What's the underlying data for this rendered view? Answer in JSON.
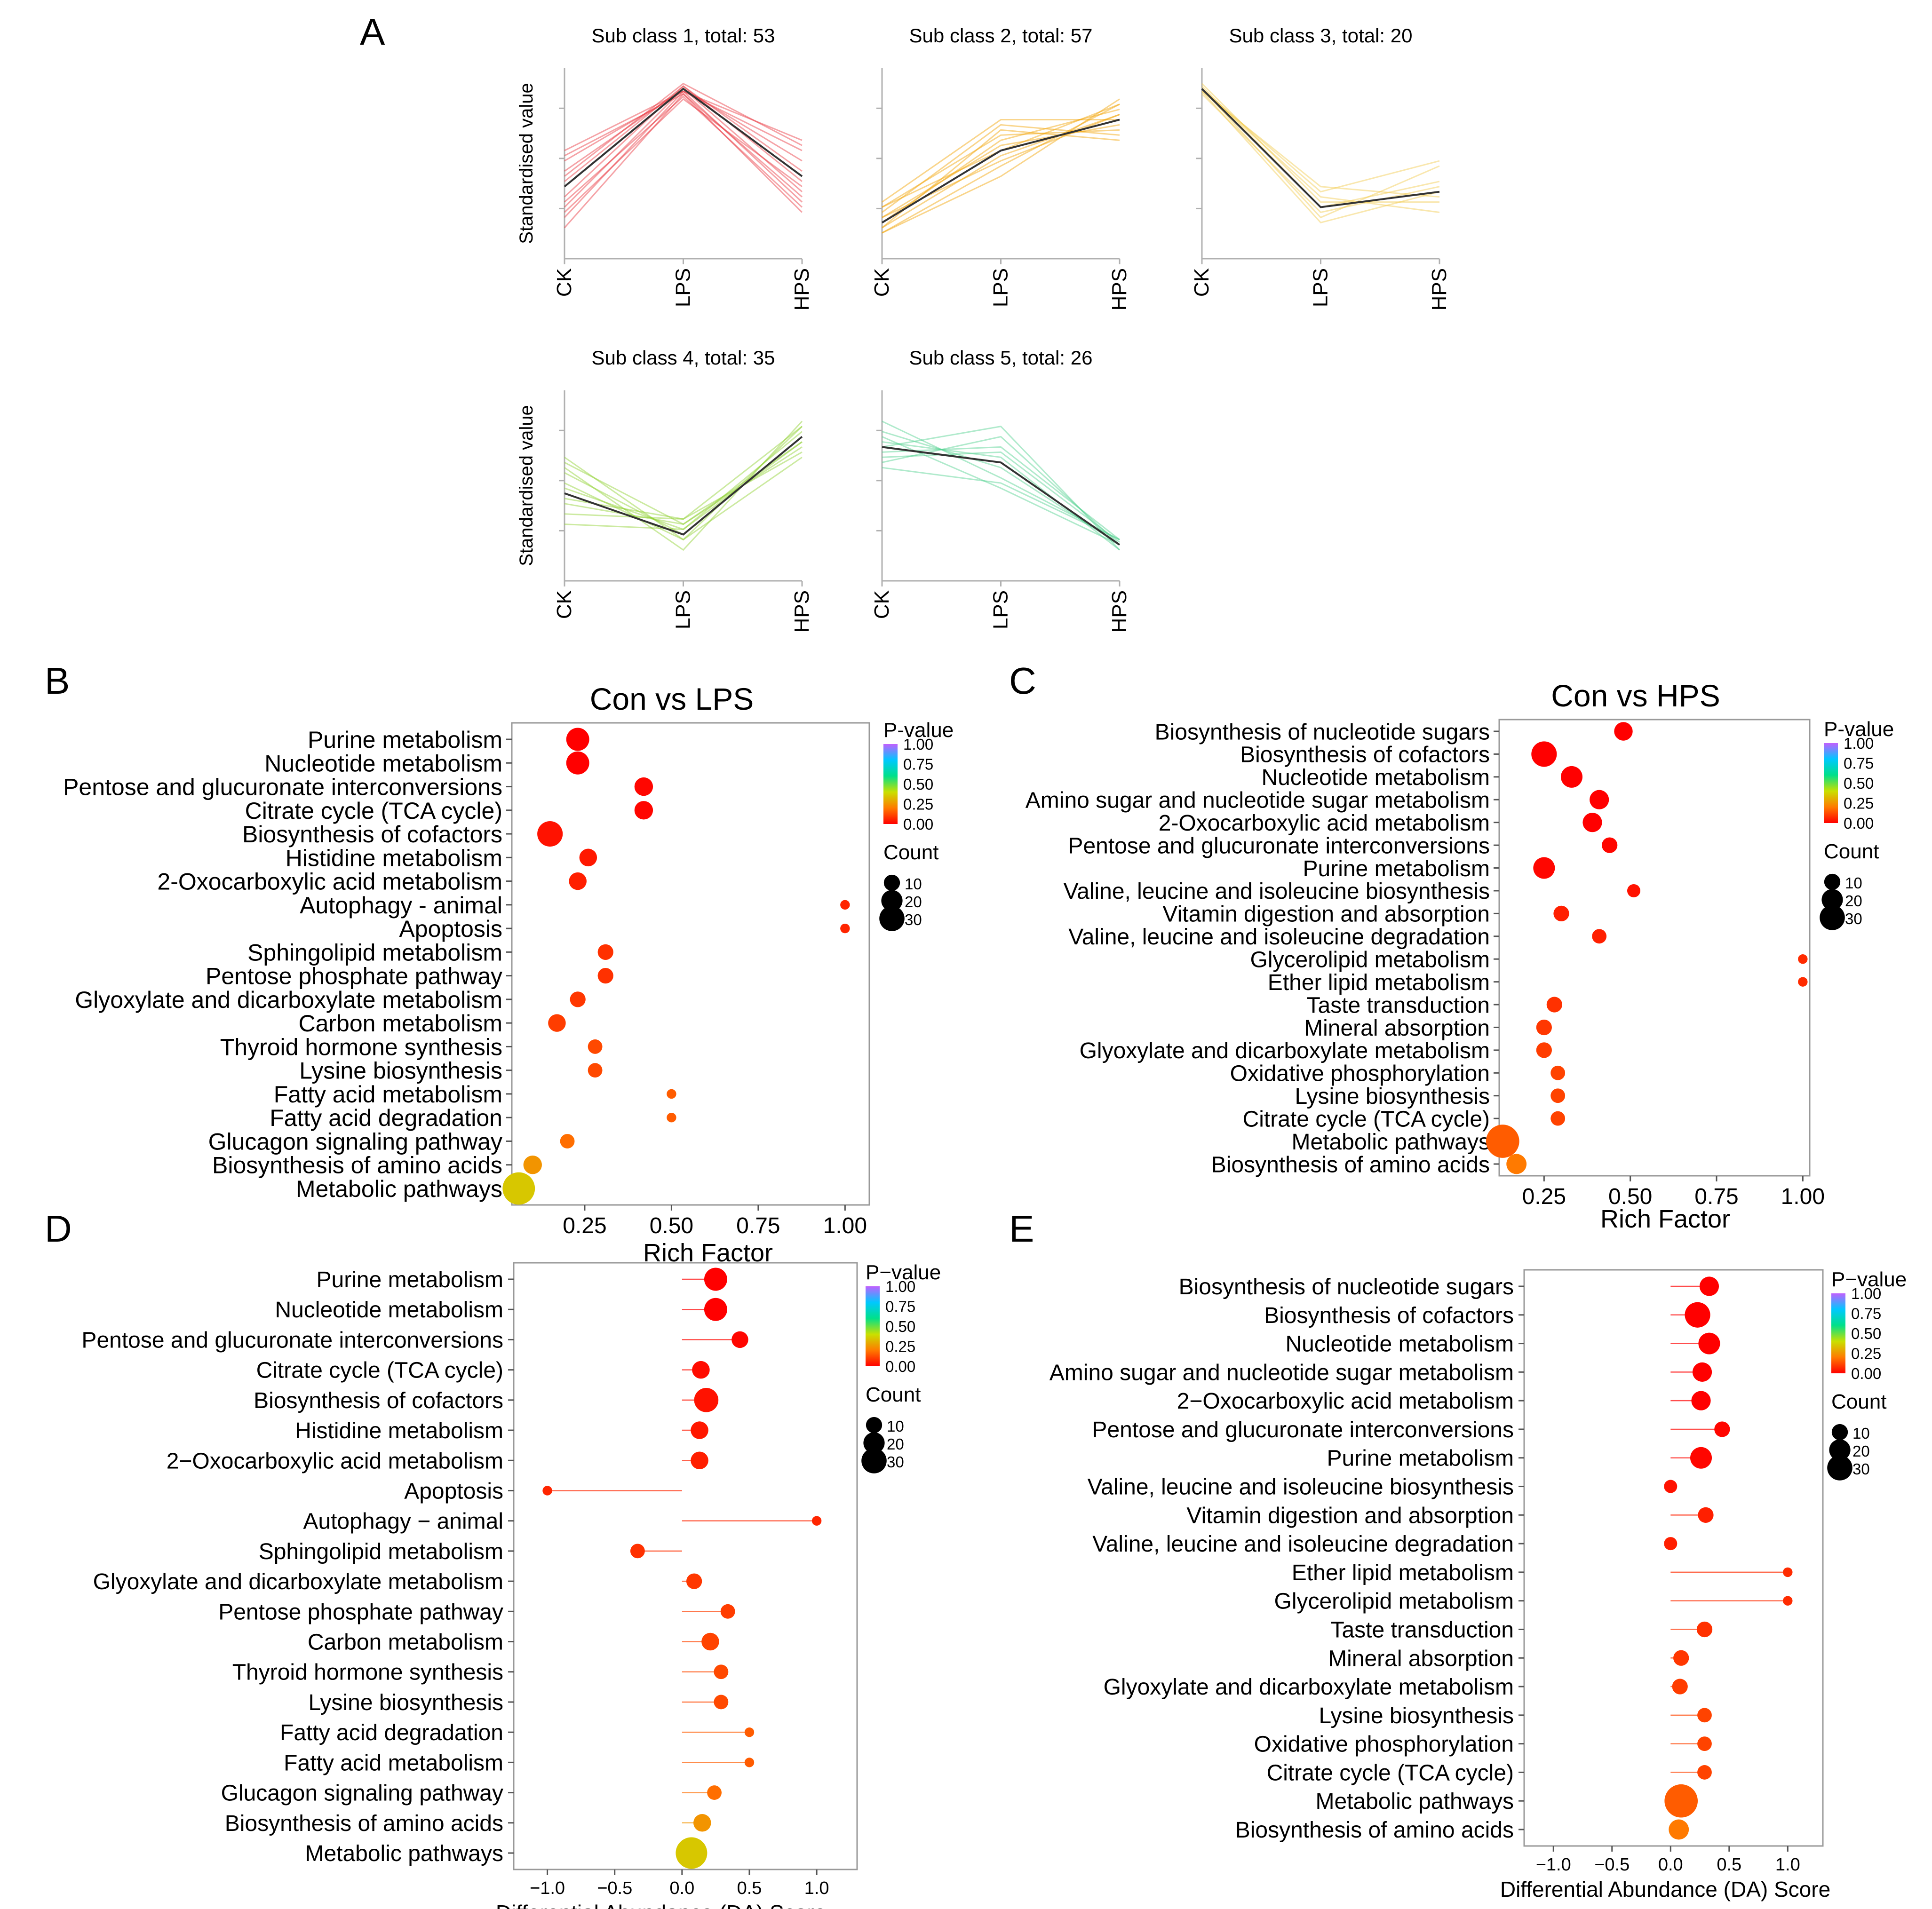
{
  "figure": {
    "panel_letters": [
      "A",
      "B",
      "C",
      "D",
      "E"
    ]
  },
  "colors": {
    "pvalue_gradient": [
      "#ff0000",
      "#ff7a00",
      "#c9e000",
      "#00e08a",
      "#00c8ff",
      "#c060ff"
    ],
    "frame": "#999999",
    "background": "#ffffff"
  },
  "chart_data": [
    {
      "type": "line",
      "panel": "A",
      "title": "Sub class 1, total: 53",
      "ylabel": "Standardised value",
      "categories": [
        "CK",
        "LPS",
        "HPS"
      ],
      "color": "#e8323c",
      "mean": [
        -0.4,
        1.5,
        -0.2
      ],
      "profiles": [
        [
          -1.2,
          1.4,
          -0.9
        ],
        [
          -1.0,
          1.45,
          -0.7
        ],
        [
          -0.8,
          1.5,
          -0.5
        ],
        [
          -0.6,
          1.55,
          -0.3
        ],
        [
          -0.3,
          1.55,
          -0.1
        ],
        [
          -0.1,
          1.5,
          0.1
        ],
        [
          0.1,
          1.45,
          0.3
        ],
        [
          0.3,
          1.45,
          0.5
        ],
        [
          -0.7,
          1.35,
          -0.8
        ],
        [
          -0.2,
          1.6,
          0.4
        ],
        [
          -0.9,
          1.3,
          -0.4
        ],
        [
          0.2,
          1.4,
          -0.6
        ]
      ]
    },
    {
      "type": "line",
      "panel": "A",
      "title": "Sub class 2, total: 57",
      "ylabel": "",
      "categories": [
        "CK",
        "LPS",
        "HPS"
      ],
      "color": "#f2a100",
      "mean": [
        -1.1,
        0.3,
        0.9
      ],
      "profiles": [
        [
          -1.3,
          0.0,
          1.2
        ],
        [
          -1.2,
          0.2,
          1.0
        ],
        [
          -1.0,
          0.4,
          0.8
        ],
        [
          -0.8,
          0.6,
          0.7
        ],
        [
          -0.9,
          0.8,
          0.6
        ],
        [
          -1.1,
          0.5,
          1.1
        ],
        [
          -1.3,
          -0.2,
          1.3
        ],
        [
          -0.7,
          0.9,
          0.9
        ],
        [
          -1.0,
          0.1,
          1.0
        ],
        [
          -1.2,
          0.7,
          0.5
        ],
        [
          -0.8,
          0.3,
          1.2
        ]
      ]
    },
    {
      "type": "line",
      "panel": "A",
      "title": "Sub class 3, total: 20",
      "ylabel": "",
      "categories": [
        "CK",
        "LPS",
        "HPS"
      ],
      "color": "#f2c94c",
      "mean": [
        1.5,
        -0.8,
        -0.5
      ],
      "profiles": [
        [
          1.5,
          -0.6,
          -0.9
        ],
        [
          1.45,
          -0.4,
          -0.6
        ],
        [
          1.55,
          -0.8,
          -0.3
        ],
        [
          1.5,
          -1.0,
          0.0
        ],
        [
          1.4,
          -0.9,
          -0.4
        ],
        [
          1.6,
          -0.7,
          -0.7
        ],
        [
          1.5,
          -0.5,
          0.1
        ],
        [
          1.45,
          -1.1,
          -0.5
        ]
      ]
    },
    {
      "type": "line",
      "panel": "A",
      "title": "Sub class 4, total: 35",
      "ylabel": "Standardised value",
      "categories": [
        "CK",
        "LPS",
        "HPS"
      ],
      "color": "#8fd12f",
      "mean": [
        -0.1,
        -0.9,
        1.0
      ],
      "profiles": [
        [
          0.6,
          -1.0,
          1.2
        ],
        [
          0.3,
          -0.9,
          1.0
        ],
        [
          0.0,
          -0.8,
          0.9
        ],
        [
          -0.3,
          -0.7,
          0.8
        ],
        [
          -0.5,
          -0.6,
          0.7
        ],
        [
          -0.7,
          -0.8,
          1.1
        ],
        [
          0.4,
          -1.2,
          1.3
        ],
        [
          0.1,
          -1.0,
          0.6
        ],
        [
          -0.2,
          -0.6,
          1.2
        ],
        [
          0.5,
          -0.7,
          0.9
        ]
      ]
    },
    {
      "type": "line",
      "panel": "A",
      "title": "Sub class 5, total: 26",
      "ylabel": "",
      "categories": [
        "CK",
        "LPS",
        "HPS"
      ],
      "color": "#4fd18f",
      "mean": [
        0.8,
        0.5,
        -1.1
      ],
      "profiles": [
        [
          1.3,
          0.2,
          -1.0
        ],
        [
          1.1,
          0.4,
          -1.1
        ],
        [
          0.9,
          0.6,
          -1.2
        ],
        [
          0.7,
          0.8,
          -1.0
        ],
        [
          0.5,
          1.0,
          -1.1
        ],
        [
          0.8,
          1.2,
          -1.2
        ],
        [
          0.4,
          0.1,
          -1.0
        ],
        [
          1.0,
          0.0,
          -1.1
        ],
        [
          0.6,
          0.7,
          -1.05
        ]
      ]
    },
    {
      "type": "scatter",
      "panel": "B",
      "title": "Con vs LPS",
      "xlabel": "Rich Factor",
      "xlim": [
        0.04,
        1.07
      ],
      "xticks": [
        "0.25",
        "0.50",
        "0.75",
        "1.00"
      ],
      "legend_color_title": "P-value",
      "legend_color_ticks": [
        "1.00",
        "0.75",
        "0.50",
        "0.25",
        "0.00"
      ],
      "legend_size_title": "Count",
      "legend_size_ticks": [
        "10",
        "20",
        "30"
      ],
      "points": [
        {
          "label": "Purine metabolism",
          "x": 0.23,
          "count": 14,
          "p": 0.0
        },
        {
          "label": "Nucleotide metabolism",
          "x": 0.23,
          "count": 14,
          "p": 0.0
        },
        {
          "label": "Pentose and glucuronate interconversions",
          "x": 0.42,
          "count": 8,
          "p": 0.01
        },
        {
          "label": "Citrate cycle (TCA cycle)",
          "x": 0.42,
          "count": 8,
          "p": 0.01
        },
        {
          "label": "Biosynthesis of cofactors",
          "x": 0.15,
          "count": 18,
          "p": 0.03
        },
        {
          "label": "Histidine metabolism",
          "x": 0.26,
          "count": 7,
          "p": 0.04
        },
        {
          "label": "2-Oxocarboxylic acid metabolism",
          "x": 0.23,
          "count": 7,
          "p": 0.05
        },
        {
          "label": "Autophagy - animal",
          "x": 1.0,
          "count": 1,
          "p": 0.06
        },
        {
          "label": "Apoptosis",
          "x": 1.0,
          "count": 1,
          "p": 0.06
        },
        {
          "label": "Sphingolipid metabolism",
          "x": 0.31,
          "count": 5,
          "p": 0.08
        },
        {
          "label": "Pentose phosphate pathway",
          "x": 0.31,
          "count": 5,
          "p": 0.08
        },
        {
          "label": "Glyoxylate and dicarboxylate metabolism",
          "x": 0.23,
          "count": 5,
          "p": 0.09
        },
        {
          "label": "Carbon metabolism",
          "x": 0.17,
          "count": 7,
          "p": 0.1
        },
        {
          "label": "Thyroid hormone synthesis",
          "x": 0.28,
          "count": 4,
          "p": 0.12
        },
        {
          "label": "Lysine biosynthesis",
          "x": 0.28,
          "count": 4,
          "p": 0.12
        },
        {
          "label": "Fatty acid metabolism",
          "x": 0.5,
          "count": 1,
          "p": 0.15
        },
        {
          "label": "Fatty acid degradation",
          "x": 0.5,
          "count": 1,
          "p": 0.15
        },
        {
          "label": "Glucagon signaling pathway",
          "x": 0.2,
          "count": 4,
          "p": 0.18
        },
        {
          "label": "Biosynthesis of amino acids",
          "x": 0.1,
          "count": 8,
          "p": 0.25
        },
        {
          "label": "Metabolic pathways",
          "x": 0.06,
          "count": 32,
          "p": 0.35
        }
      ]
    },
    {
      "type": "scatter",
      "panel": "C",
      "title": "Con vs HPS",
      "xlabel": "Rich Factor",
      "xlim": [
        0.12,
        1.02
      ],
      "xticks": [
        "0.25",
        "0.50",
        "0.75",
        "1.00"
      ],
      "legend_color_title": "P-value",
      "legend_color_ticks": [
        "1.00",
        "0.75",
        "0.50",
        "0.25",
        "0.00"
      ],
      "legend_size_title": "Count",
      "legend_size_ticks": [
        "10",
        "20",
        "30"
      ],
      "points": [
        {
          "label": "Biosynthesis of nucleotide sugars",
          "x": 0.48,
          "count": 8,
          "p": 0.0
        },
        {
          "label": "Biosynthesis of cofactors",
          "x": 0.25,
          "count": 18,
          "p": 0.0
        },
        {
          "label": "Nucleotide metabolism",
          "x": 0.33,
          "count": 12,
          "p": 0.0
        },
        {
          "label": "Amino sugar and nucleotide sugar metabolism",
          "x": 0.41,
          "count": 9,
          "p": 0.0
        },
        {
          "label": "2-Oxocarboxylic acid metabolism",
          "x": 0.39,
          "count": 9,
          "p": 0.0
        },
        {
          "label": "Pentose and glucuronate interconversions",
          "x": 0.44,
          "count": 5,
          "p": 0.01
        },
        {
          "label": "Purine metabolism",
          "x": 0.25,
          "count": 12,
          "p": 0.01
        },
        {
          "label": "Valine, leucine and isoleucine biosynthesis",
          "x": 0.51,
          "count": 3,
          "p": 0.03
        },
        {
          "label": "Vitamin digestion and absorption",
          "x": 0.3,
          "count": 5,
          "p": 0.05
        },
        {
          "label": "Valine, leucine and isoleucine degradation",
          "x": 0.41,
          "count": 4,
          "p": 0.05
        },
        {
          "label": "Glycerolipid metabolism",
          "x": 1.0,
          "count": 1,
          "p": 0.07
        },
        {
          "label": "Ether lipid metabolism",
          "x": 1.0,
          "count": 1,
          "p": 0.07
        },
        {
          "label": "Taste transduction",
          "x": 0.28,
          "count": 5,
          "p": 0.08
        },
        {
          "label": "Mineral absorption",
          "x": 0.25,
          "count": 5,
          "p": 0.09
        },
        {
          "label": "Glyoxylate and dicarboxylate metabolism",
          "x": 0.25,
          "count": 5,
          "p": 0.1
        },
        {
          "label": "Oxidative phosphorylation",
          "x": 0.29,
          "count": 4,
          "p": 0.11
        },
        {
          "label": "Lysine biosynthesis",
          "x": 0.29,
          "count": 4,
          "p": 0.11
        },
        {
          "label": "Citrate cycle (TCA cycle)",
          "x": 0.29,
          "count": 4,
          "p": 0.11
        },
        {
          "label": "Metabolic pathways",
          "x": 0.13,
          "count": 34,
          "p": 0.15
        },
        {
          "label": "Biosynthesis of amino acids",
          "x": 0.17,
          "count": 10,
          "p": 0.2
        }
      ]
    },
    {
      "type": "scatter",
      "panel": "D",
      "title": "",
      "xlabel": "Differential Abundance (DA) Score",
      "xlim": [
        -1.25,
        1.3
      ],
      "xticks": [
        "−1.0",
        "−0.5",
        "0.0",
        "0.5",
        "1.0"
      ],
      "xtick_values": [
        -1.0,
        -0.5,
        0.0,
        0.5,
        1.0
      ],
      "legend_color_title": "P−value",
      "legend_color_ticks": [
        "1.00",
        "0.75",
        "0.50",
        "0.25",
        "0.00"
      ],
      "legend_size_title": "Count",
      "legend_size_ticks": [
        "10",
        "20",
        "30"
      ],
      "points": [
        {
          "label": "Purine metabolism",
          "x": 0.25,
          "count": 14,
          "p": 0.0
        },
        {
          "label": "Nucleotide metabolism",
          "x": 0.25,
          "count": 14,
          "p": 0.0
        },
        {
          "label": "Pentose and glucuronate interconversions",
          "x": 0.43,
          "count": 6,
          "p": 0.01
        },
        {
          "label": "Citrate cycle (TCA cycle)",
          "x": 0.14,
          "count": 7,
          "p": 0.02
        },
        {
          "label": "Biosynthesis of cofactors",
          "x": 0.18,
          "count": 16,
          "p": 0.03
        },
        {
          "label": "Histidine metabolism",
          "x": 0.13,
          "count": 7,
          "p": 0.04
        },
        {
          "label": "2−Oxocarboxylic acid metabolism",
          "x": 0.13,
          "count": 7,
          "p": 0.05
        },
        {
          "label": "Apoptosis",
          "x": -1.0,
          "count": 1,
          "p": 0.06
        },
        {
          "label": "Autophagy − animal",
          "x": 1.0,
          "count": 1,
          "p": 0.06
        },
        {
          "label": "Sphingolipid metabolism",
          "x": -0.33,
          "count": 4,
          "p": 0.08
        },
        {
          "label": "Glyoxylate and dicarboxylate metabolism",
          "x": 0.09,
          "count": 5,
          "p": 0.09
        },
        {
          "label": "Pentose phosphate pathway",
          "x": 0.34,
          "count": 4,
          "p": 0.1
        },
        {
          "label": "Carbon metabolism",
          "x": 0.21,
          "count": 7,
          "p": 0.11
        },
        {
          "label": "Thyroid hormone synthesis",
          "x": 0.29,
          "count": 4,
          "p": 0.12
        },
        {
          "label": "Lysine biosynthesis",
          "x": 0.29,
          "count": 4,
          "p": 0.12
        },
        {
          "label": "Fatty acid degradation",
          "x": 0.5,
          "count": 1,
          "p": 0.15
        },
        {
          "label": "Fatty acid metabolism",
          "x": 0.5,
          "count": 1,
          "p": 0.15
        },
        {
          "label": "Glucagon signaling pathway",
          "x": 0.24,
          "count": 4,
          "p": 0.18
        },
        {
          "label": "Biosynthesis of amino acids",
          "x": 0.15,
          "count": 7,
          "p": 0.25
        },
        {
          "label": "Metabolic pathways",
          "x": 0.07,
          "count": 30,
          "p": 0.35
        }
      ]
    },
    {
      "type": "scatter",
      "panel": "E",
      "title": "",
      "xlabel": "Differential Abundance (DA) Score",
      "xlim": [
        -1.25,
        1.3
      ],
      "xticks": [
        "−1.0",
        "−0.5",
        "0.0",
        "0.5",
        "1.0"
      ],
      "xtick_values": [
        -1.0,
        -0.5,
        0.0,
        0.5,
        1.0
      ],
      "legend_color_title": "P−value",
      "legend_color_ticks": [
        "1.00",
        "0.75",
        "0.50",
        "0.25",
        "0.00"
      ],
      "legend_size_title": "Count",
      "legend_size_ticks": [
        "10",
        "20",
        "30"
      ],
      "points": [
        {
          "label": "Biosynthesis of nucleotide sugars",
          "x": 0.33,
          "count": 9,
          "p": 0.0
        },
        {
          "label": "Biosynthesis of cofactors",
          "x": 0.23,
          "count": 18,
          "p": 0.0
        },
        {
          "label": "Nucleotide metabolism",
          "x": 0.33,
          "count": 12,
          "p": 0.0
        },
        {
          "label": "Amino sugar and nucleotide sugar metabolism",
          "x": 0.27,
          "count": 9,
          "p": 0.0
        },
        {
          "label": "2−Oxocarboxylic acid metabolism",
          "x": 0.26,
          "count": 9,
          "p": 0.0
        },
        {
          "label": "Pentose and glucuronate interconversions",
          "x": 0.44,
          "count": 5,
          "p": 0.01
        },
        {
          "label": "Purine metabolism",
          "x": 0.26,
          "count": 12,
          "p": 0.01
        },
        {
          "label": "Valine, leucine and isoleucine biosynthesis",
          "x": 0.0,
          "count": 3,
          "p": 0.03
        },
        {
          "label": "Vitamin digestion and absorption",
          "x": 0.3,
          "count": 5,
          "p": 0.05
        },
        {
          "label": "Valine, leucine and isoleucine degradation",
          "x": 0.0,
          "count": 3,
          "p": 0.05
        },
        {
          "label": "Ether lipid metabolism",
          "x": 1.0,
          "count": 1,
          "p": 0.07
        },
        {
          "label": "Glycerolipid metabolism",
          "x": 1.0,
          "count": 1,
          "p": 0.07
        },
        {
          "label": "Taste transduction",
          "x": 0.29,
          "count": 5,
          "p": 0.08
        },
        {
          "label": "Mineral absorption",
          "x": 0.09,
          "count": 5,
          "p": 0.09
        },
        {
          "label": "Glyoxylate and dicarboxylate metabolism",
          "x": 0.08,
          "count": 5,
          "p": 0.1
        },
        {
          "label": "Lysine biosynthesis",
          "x": 0.29,
          "count": 4,
          "p": 0.11
        },
        {
          "label": "Oxidative phosphorylation",
          "x": 0.29,
          "count": 4,
          "p": 0.11
        },
        {
          "label": "Citrate cycle (TCA cycle)",
          "x": 0.29,
          "count": 4,
          "p": 0.11
        },
        {
          "label": "Metabolic pathways",
          "x": 0.09,
          "count": 34,
          "p": 0.15
        },
        {
          "label": "Biosynthesis of amino acids",
          "x": 0.07,
          "count": 10,
          "p": 0.2
        }
      ]
    }
  ]
}
